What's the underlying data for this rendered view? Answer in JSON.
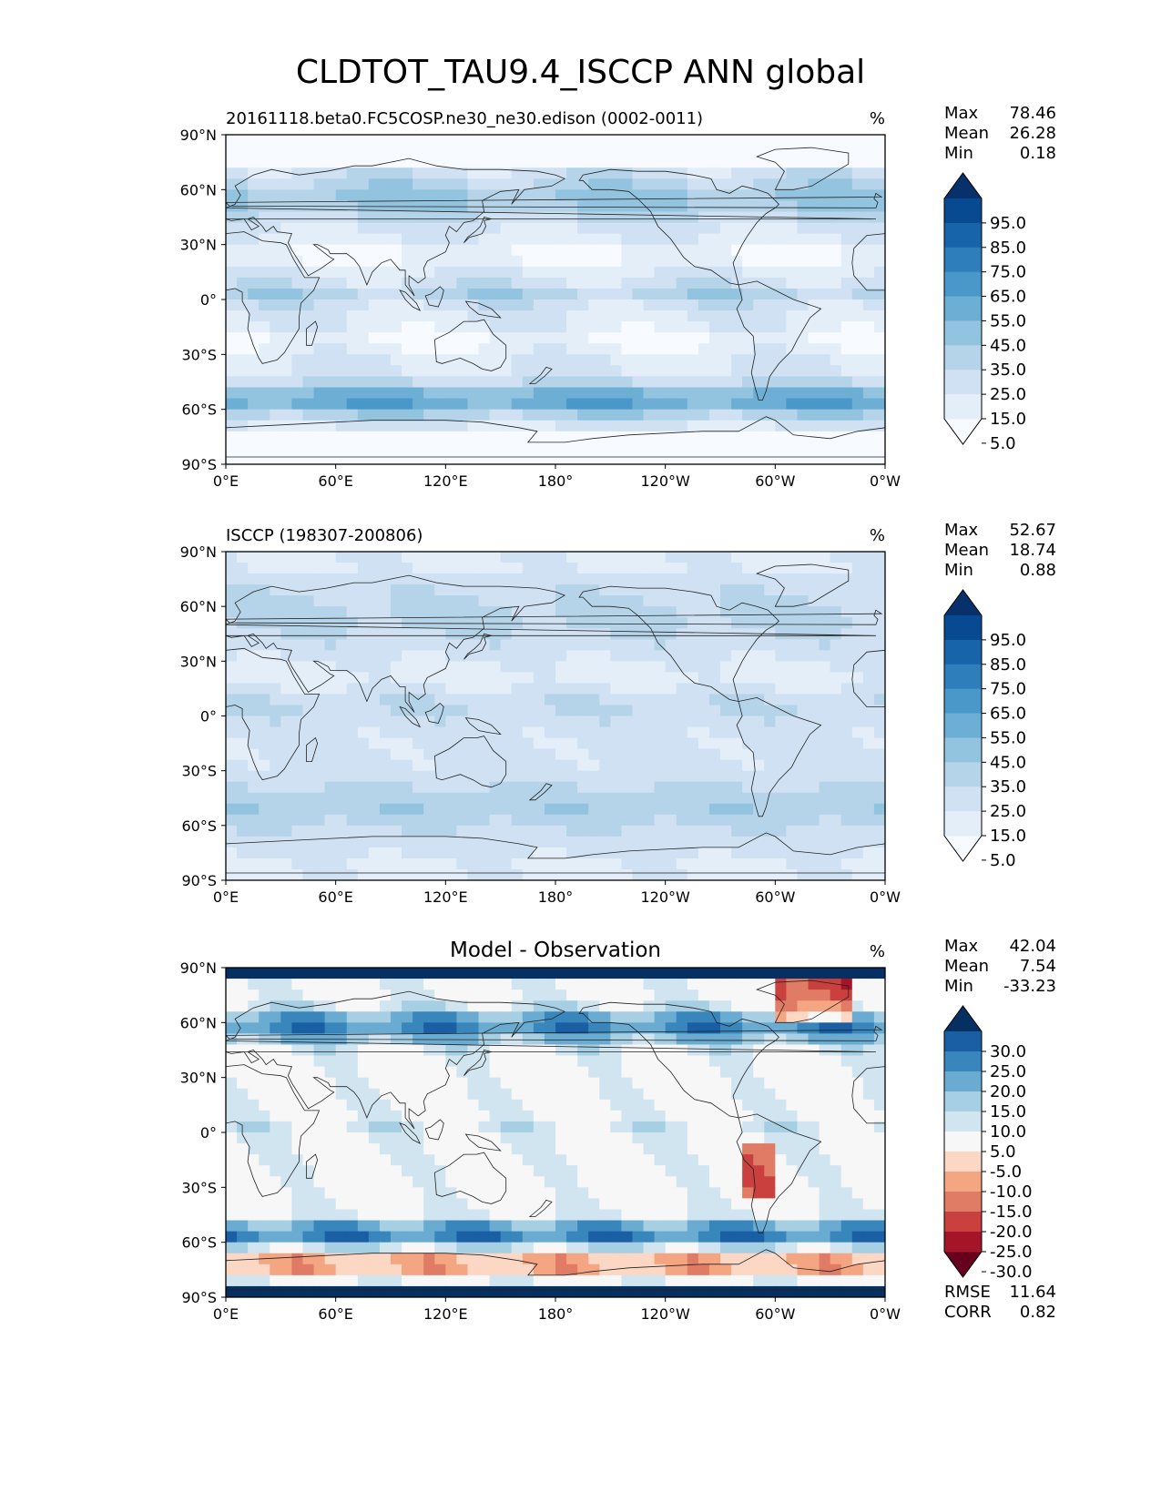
{
  "figure": {
    "title": "CLDTOT_TAU9.4_ISCCP ANN global"
  },
  "chart_data": [
    {
      "type": "heatmap",
      "panel": "test",
      "title": "20161118.beta0.FC5COSP.ne30_ne30.edison (0002-0011)",
      "units": "%",
      "x_ticks": [
        "0°E",
        "60°E",
        "120°E",
        "180°",
        "120°W",
        "60°W",
        "0°W"
      ],
      "y_ticks": [
        "90°N",
        "60°N",
        "30°N",
        "0°",
        "30°S",
        "60°S",
        "90°S"
      ],
      "xlim": [
        0,
        360
      ],
      "ylim": [
        -90,
        90
      ],
      "stats": [
        {
          "label": "Max",
          "value": "78.46"
        },
        {
          "label": "Mean",
          "value": "26.28"
        },
        {
          "label": "Min",
          "value": "0.18"
        }
      ],
      "colorbar": {
        "levels": [
          0,
          5,
          15,
          25,
          35,
          45,
          55,
          65,
          75,
          85,
          95,
          100
        ],
        "tick_labels": [
          "95.0",
          "85.0",
          "75.0",
          "65.0",
          "55.0",
          "45.0",
          "35.0",
          "25.0",
          "15.0",
          "5.0"
        ],
        "colors": [
          "#f7fbff",
          "#e3eef9",
          "#cfe1f2",
          "#b5d4e9",
          "#93c4df",
          "#6daed5",
          "#4a98c9",
          "#2f7ebc",
          "#1764ab",
          "#084a91",
          "#08306b"
        ],
        "extend": "both"
      }
    },
    {
      "type": "heatmap",
      "panel": "reference",
      "title": "ISCCP (198307-200806)",
      "units": "%",
      "x_ticks": [
        "0°E",
        "60°E",
        "120°E",
        "180°",
        "120°W",
        "60°W",
        "0°W"
      ],
      "y_ticks": [
        "90°N",
        "60°N",
        "30°N",
        "0°",
        "30°S",
        "60°S",
        "90°S"
      ],
      "xlim": [
        0,
        360
      ],
      "ylim": [
        -90,
        90
      ],
      "stats": [
        {
          "label": "Max",
          "value": "52.67"
        },
        {
          "label": "Mean",
          "value": "18.74"
        },
        {
          "label": "Min",
          "value": "0.88"
        }
      ],
      "colorbar": {
        "levels": [
          0,
          5,
          15,
          25,
          35,
          45,
          55,
          65,
          75,
          85,
          95,
          100
        ],
        "tick_labels": [
          "95.0",
          "85.0",
          "75.0",
          "65.0",
          "55.0",
          "45.0",
          "35.0",
          "25.0",
          "15.0",
          "5.0"
        ],
        "colors": [
          "#f7fbff",
          "#e3eef9",
          "#cfe1f2",
          "#b5d4e9",
          "#93c4df",
          "#6daed5",
          "#4a98c9",
          "#2f7ebc",
          "#1764ab",
          "#084a91",
          "#08306b"
        ],
        "extend": "both"
      }
    },
    {
      "type": "heatmap",
      "panel": "difference",
      "title": "Model - Observation",
      "units": "%",
      "x_ticks": [
        "0°E",
        "60°E",
        "120°E",
        "180°",
        "120°W",
        "60°W",
        "0°W"
      ],
      "y_ticks": [
        "90°N",
        "60°N",
        "30°N",
        "0°",
        "30°S",
        "60°S",
        "90°S"
      ],
      "xlim": [
        0,
        360
      ],
      "ylim": [
        -90,
        90
      ],
      "stats": [
        {
          "label": "Max",
          "value": "42.04"
        },
        {
          "label": "Mean",
          "value": "7.54"
        },
        {
          "label": "Min",
          "value": "-33.23"
        }
      ],
      "extra_stats": [
        {
          "label": "RMSE",
          "value": "11.64"
        },
        {
          "label": "CORR",
          "value": "0.82"
        }
      ],
      "colorbar": {
        "levels": [
          -35,
          -30,
          -25,
          -20,
          -15,
          -10,
          -5,
          5,
          10,
          15,
          20,
          25,
          30,
          35
        ],
        "tick_labels": [
          "30.0",
          "25.0",
          "20.0",
          "15.0",
          "10.0",
          "5.0",
          "-5.0",
          "-10.0",
          "-15.0",
          "-20.0",
          "-25.0",
          "-30.0"
        ],
        "colors": [
          "#67001f",
          "#a51429",
          "#c9403e",
          "#e07b66",
          "#f4a582",
          "#fbd7c4",
          "#f7f7f7",
          "#d1e5f0",
          "#a7cfe4",
          "#6aabd2",
          "#3886bc",
          "#1a5ea3",
          "#053061"
        ],
        "extend": "both"
      }
    }
  ]
}
